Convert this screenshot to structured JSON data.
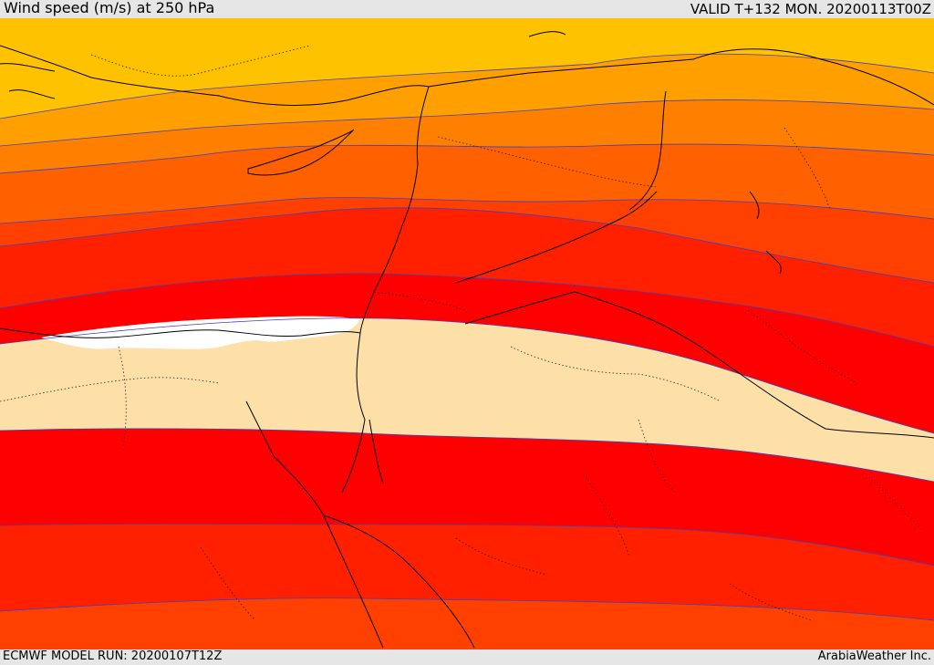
{
  "header": {
    "title": "Wind speed (m/s) at 250 hPa",
    "valid_time": "VALID T+132 MON. 20200113T00Z"
  },
  "footer": {
    "model_run": "ECMWF MODEL RUN: 20200107T12Z",
    "credit": "ArabiaWeather Inc."
  },
  "map": {
    "region": "Eastern Mediterranean / Middle East",
    "field": "wind speed at 250 hPa",
    "colors": {
      "band_yellow": "#ffc200",
      "band_light_orange": "#ffa000",
      "band_orange": "#ff8000",
      "band_dark_orange": "#ff6000",
      "band_red_orange": "#ff4000",
      "band_deep_red_orange": "#ff2000",
      "band_red": "#ff0000",
      "band_tan": "#fde0a8",
      "band_white": "#ffffff",
      "contour_line": "#4040c0",
      "coast_line": "#000000"
    }
  }
}
